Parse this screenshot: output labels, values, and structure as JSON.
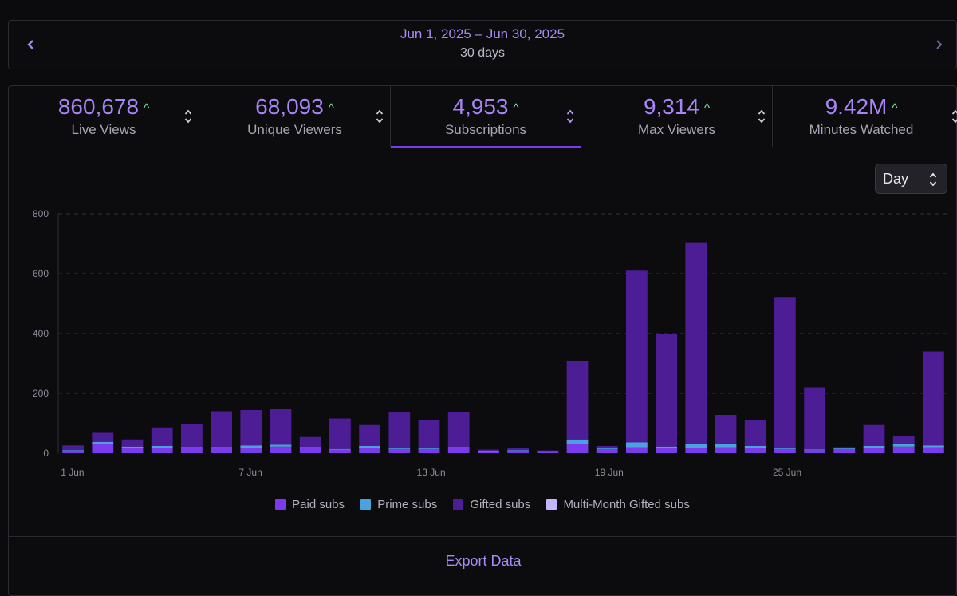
{
  "date_range": {
    "label": "Jun 1, 2025 – Jun 30, 2025",
    "days": "30 days"
  },
  "nav": {
    "prev_icon": "chevron-left-icon",
    "next_icon": "chevron-right-icon"
  },
  "stats": [
    {
      "value": "860,678",
      "label": "Live Views",
      "trend": "up"
    },
    {
      "value": "68,093",
      "label": "Unique Viewers",
      "trend": "up"
    },
    {
      "value": "4,953",
      "label": "Subscriptions",
      "trend": "up",
      "active": true
    },
    {
      "value": "9,314",
      "label": "Max Viewers",
      "trend": "up"
    },
    {
      "value": "9.42M",
      "label": "Minutes Watched",
      "trend": "up"
    }
  ],
  "granularity": {
    "selected": "Day"
  },
  "colors": {
    "paid": "#7c3aed",
    "prime": "#4aa3df",
    "gifted": "#4c1d95",
    "multi_month": "#c4b5fd",
    "accent": "#a78bf4",
    "trend_up": "#7ee8a0"
  },
  "chart_data": {
    "type": "bar",
    "stacked": true,
    "y_ticks": [
      "800",
      "600",
      "400",
      "200",
      "0"
    ],
    "ylim": [
      0,
      800
    ],
    "x_tick_labels": [
      {
        "index": 0,
        "label": "1 Jun"
      },
      {
        "index": 6,
        "label": "7 Jun"
      },
      {
        "index": 12,
        "label": "13 Jun"
      },
      {
        "index": 18,
        "label": "19 Jun"
      },
      {
        "index": 24,
        "label": "25 Jun"
      }
    ],
    "categories": [
      "1",
      "2",
      "3",
      "4",
      "5",
      "6",
      "7",
      "8",
      "9",
      "10",
      "11",
      "12",
      "13",
      "14",
      "15",
      "16",
      "17",
      "18",
      "19",
      "20",
      "21",
      "22",
      "23",
      "24",
      "25",
      "26",
      "27",
      "28",
      "29",
      "30"
    ],
    "series": [
      {
        "name": "Paid subs",
        "key": "paid",
        "values": [
          8,
          32,
          18,
          18,
          16,
          16,
          18,
          22,
          16,
          12,
          18,
          14,
          14,
          16,
          6,
          8,
          6,
          32,
          14,
          20,
          18,
          16,
          20,
          16,
          14,
          10,
          14,
          18,
          22,
          20
        ]
      },
      {
        "name": "Prime subs",
        "key": "prime",
        "values": [
          2,
          6,
          4,
          6,
          4,
          4,
          8,
          6,
          4,
          2,
          6,
          4,
          2,
          4,
          2,
          2,
          1,
          14,
          2,
          16,
          4,
          14,
          12,
          8,
          4,
          2,
          2,
          6,
          8,
          6
        ]
      },
      {
        "name": "Gifted subs",
        "key": "gifted",
        "values": [
          16,
          30,
          24,
          62,
          78,
          120,
          118,
          120,
          34,
          102,
          70,
          120,
          94,
          116,
          4,
          6,
          2,
          262,
          8,
          574,
          378,
          675,
          96,
          86,
          504,
          208,
          4,
          70,
          28,
          314
        ]
      },
      {
        "name": "Multi-Month Gifted subs",
        "key": "multi_month",
        "values": [
          0,
          0,
          0,
          0,
          0,
          0,
          0,
          0,
          0,
          0,
          0,
          0,
          0,
          0,
          0,
          0,
          0,
          0,
          0,
          0,
          0,
          0,
          0,
          0,
          0,
          0,
          0,
          0,
          0,
          0
        ]
      }
    ],
    "title": "",
    "xlabel": "",
    "ylabel": ""
  },
  "export": {
    "label": "Export Data"
  }
}
